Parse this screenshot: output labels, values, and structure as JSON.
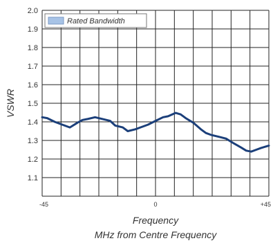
{
  "chart_data": {
    "type": "line",
    "title": "",
    "ylabel": "VSWR",
    "xlabel_lines": [
      "Frequency",
      "MHz from Centre Frequency"
    ],
    "x_ticks": [
      {
        "value": -45,
        "label": "-45"
      },
      {
        "value": 0,
        "label": "0"
      },
      {
        "value": 45,
        "label": "+45"
      }
    ],
    "y_ticks": [
      "1.1",
      "1.2",
      "1.3",
      "1.4",
      "1.5",
      "1.6",
      "1.7",
      "1.8",
      "1.9",
      "2.0"
    ],
    "xlim": [
      -45,
      45
    ],
    "ylim": [
      1.0,
      2.0
    ],
    "grid": true,
    "legend_position": "top-left",
    "series": [
      {
        "name": "Rated Bandwidth",
        "color": "#1b3f7a",
        "legend_color": "#a7c3e6",
        "x": [
          -45,
          -43,
          -40,
          -37,
          -34,
          -31,
          -29,
          -27,
          -24,
          -21,
          -18,
          -16,
          -13,
          -11,
          -8,
          -6,
          -3,
          0,
          3,
          5,
          8,
          10,
          12,
          15,
          18,
          20,
          22,
          25,
          28,
          31,
          34,
          36,
          38,
          40,
          42,
          45
        ],
        "y": [
          1.425,
          1.42,
          1.4,
          1.385,
          1.37,
          1.395,
          1.41,
          1.415,
          1.425,
          1.415,
          1.405,
          1.38,
          1.37,
          1.35,
          1.36,
          1.37,
          1.385,
          1.405,
          1.425,
          1.43,
          1.448,
          1.44,
          1.42,
          1.395,
          1.36,
          1.34,
          1.33,
          1.32,
          1.31,
          1.285,
          1.262,
          1.245,
          1.24,
          1.25,
          1.26,
          1.272
        ]
      }
    ]
  }
}
